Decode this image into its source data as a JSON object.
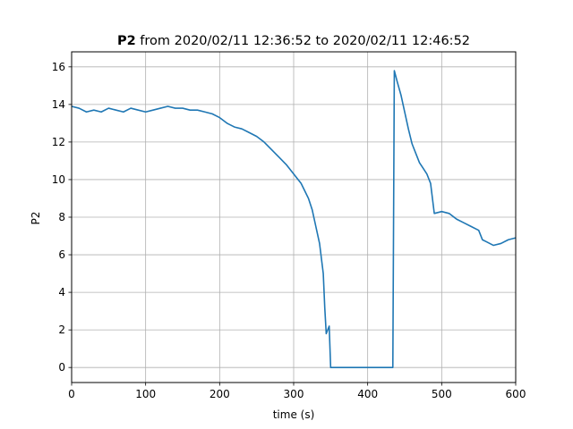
{
  "chart_data": {
    "type": "line",
    "title": {
      "bold": "P2",
      "rest": " from 2020/02/11 12:36:52 to 2020/02/11 12:46:52"
    },
    "xlabel": "time (s)",
    "ylabel": "P2",
    "xlim": [
      0,
      600
    ],
    "ylim": [
      -0.8,
      16.8
    ],
    "xticks": [
      0,
      100,
      200,
      300,
      400,
      500,
      600
    ],
    "yticks": [
      0,
      2,
      4,
      6,
      8,
      10,
      12,
      14,
      16
    ],
    "grid": true,
    "line_color": "#1f77b4",
    "series": [
      {
        "x": [
          0,
          10,
          20,
          30,
          40,
          50,
          60,
          70,
          80,
          90,
          100,
          110,
          120,
          130,
          140,
          150,
          160,
          170,
          180,
          190,
          200,
          210,
          220,
          230,
          240,
          250,
          260,
          270,
          280,
          290,
          300,
          310,
          320,
          325,
          330,
          335,
          340,
          342,
          344,
          346,
          348,
          350,
          360,
          380,
          400,
          420,
          434,
          436,
          440,
          445,
          450,
          455,
          460,
          465,
          470,
          475,
          480,
          485,
          490,
          500,
          510,
          520,
          530,
          540,
          550,
          555,
          560,
          570,
          580,
          590,
          600
        ],
        "y": [
          13.9,
          13.8,
          13.6,
          13.7,
          13.6,
          13.8,
          13.7,
          13.6,
          13.8,
          13.7,
          13.6,
          13.7,
          13.8,
          13.9,
          13.8,
          13.8,
          13.7,
          13.7,
          13.6,
          13.5,
          13.3,
          13.0,
          12.8,
          12.7,
          12.5,
          12.3,
          12.0,
          11.6,
          11.2,
          10.8,
          10.3,
          9.8,
          9.0,
          8.4,
          7.5,
          6.6,
          5.0,
          3.2,
          1.8,
          2.0,
          2.2,
          0.0,
          0.0,
          0.0,
          0.0,
          0.0,
          0.0,
          15.8,
          15.2,
          14.5,
          13.6,
          12.7,
          11.9,
          11.4,
          10.9,
          10.6,
          10.3,
          9.8,
          8.2,
          8.3,
          8.2,
          7.9,
          7.7,
          7.5,
          7.3,
          6.8,
          6.7,
          6.5,
          6.6,
          6.8,
          6.9
        ]
      }
    ]
  }
}
